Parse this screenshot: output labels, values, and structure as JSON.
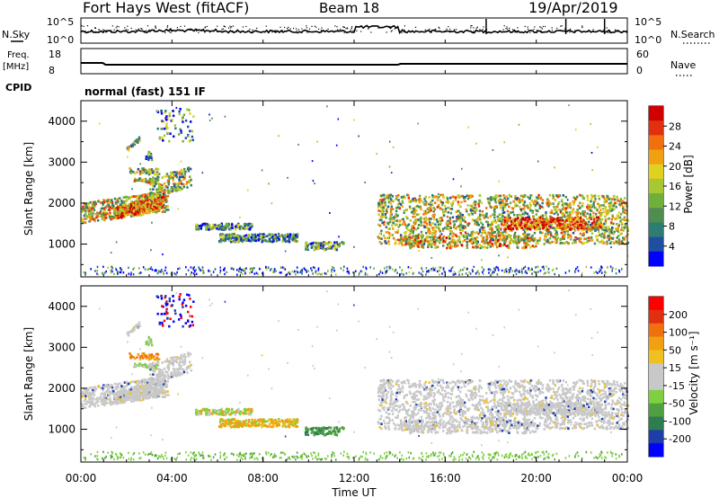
{
  "header": {
    "station": "Fort Hays West (fitACF)",
    "beam": "Beam 18",
    "date": "19/Apr/2019",
    "mode": "normal (fast) 151 IF"
  },
  "left_labels": {
    "nsky": "N.Sky",
    "freq_line1": "Freq.",
    "freq_line2": "[MHz]",
    "cpid": "CPID"
  },
  "right_labels": {
    "nsearch": "N.Search",
    "nave": "Nave"
  },
  "colors": {
    "power_scale": [
      "#0000ff",
      "#1e4fa0",
      "#2e7d72",
      "#4f8c4f",
      "#6fb03a",
      "#a8c832",
      "#e0d020",
      "#f0a010",
      "#f07010",
      "#e03010",
      "#d00000"
    ],
    "velocity_scale": [
      "#0000ff",
      "#1e3faa",
      "#2e7d4f",
      "#4fa040",
      "#7ed040",
      "#c8c8c8",
      "#c8c8c8",
      "#f0c020",
      "#f0a010",
      "#f07010",
      "#e03010",
      "#ff0000"
    ],
    "ground_scatter": "#b0b0b0"
  },
  "chart_data": [
    {
      "type": "line",
      "name": "noise",
      "ylabel_left": "N.Sky",
      "ylabel_right": "N.Search",
      "yticks_left": [
        "10^5",
        "10^0"
      ],
      "yticks_right": [
        "10^5",
        "10^0"
      ]
    },
    {
      "type": "line",
      "name": "frequency",
      "ylabel_left": "Freq. [MHz]",
      "ylabel_right": "Nave",
      "yticks_left": [
        "18",
        "8"
      ],
      "yticks_right": [
        "60",
        "0"
      ],
      "freq_ylim": [
        8,
        18
      ],
      "nave_ylim": [
        0,
        60
      ]
    },
    {
      "type": "heatmap",
      "name": "power",
      "xlabel": "",
      "ylabel": "Slant Range [km]",
      "ylim": [
        200,
        4500
      ],
      "xlim_hours": [
        0,
        24
      ],
      "yticks": [
        1000,
        2000,
        3000,
        4000
      ],
      "ytick_labels": [
        "1000",
        "2000",
        "3000",
        "4000"
      ],
      "colorbar_label": "Power [dB]",
      "colorbar_ticks": [
        "28",
        "24",
        "20",
        "16",
        "12",
        "8",
        "4"
      ],
      "colorbar_range": [
        0,
        30
      ]
    },
    {
      "type": "heatmap",
      "name": "velocity",
      "xlabel": "Time UT",
      "ylabel": "Slant Range [km]",
      "ylim": [
        200,
        4500
      ],
      "xlim_hours": [
        0,
        24
      ],
      "yticks": [
        1000,
        2000,
        3000,
        4000
      ],
      "ytick_labels": [
        "1000",
        "2000",
        "3000",
        "4000"
      ],
      "colorbar_label": "Velocity [m s⁻¹]",
      "colorbar_ticks": [
        "200",
        "100",
        "50",
        "15",
        "-15",
        "-50",
        "-100",
        "-200"
      ],
      "colorbar_range": [
        -250,
        250
      ]
    }
  ],
  "x_axis": {
    "tick_labels": [
      "00:00",
      "04:00",
      "08:00",
      "12:00",
      "16:00",
      "20:00",
      "00:00"
    ],
    "label": "Time UT"
  }
}
